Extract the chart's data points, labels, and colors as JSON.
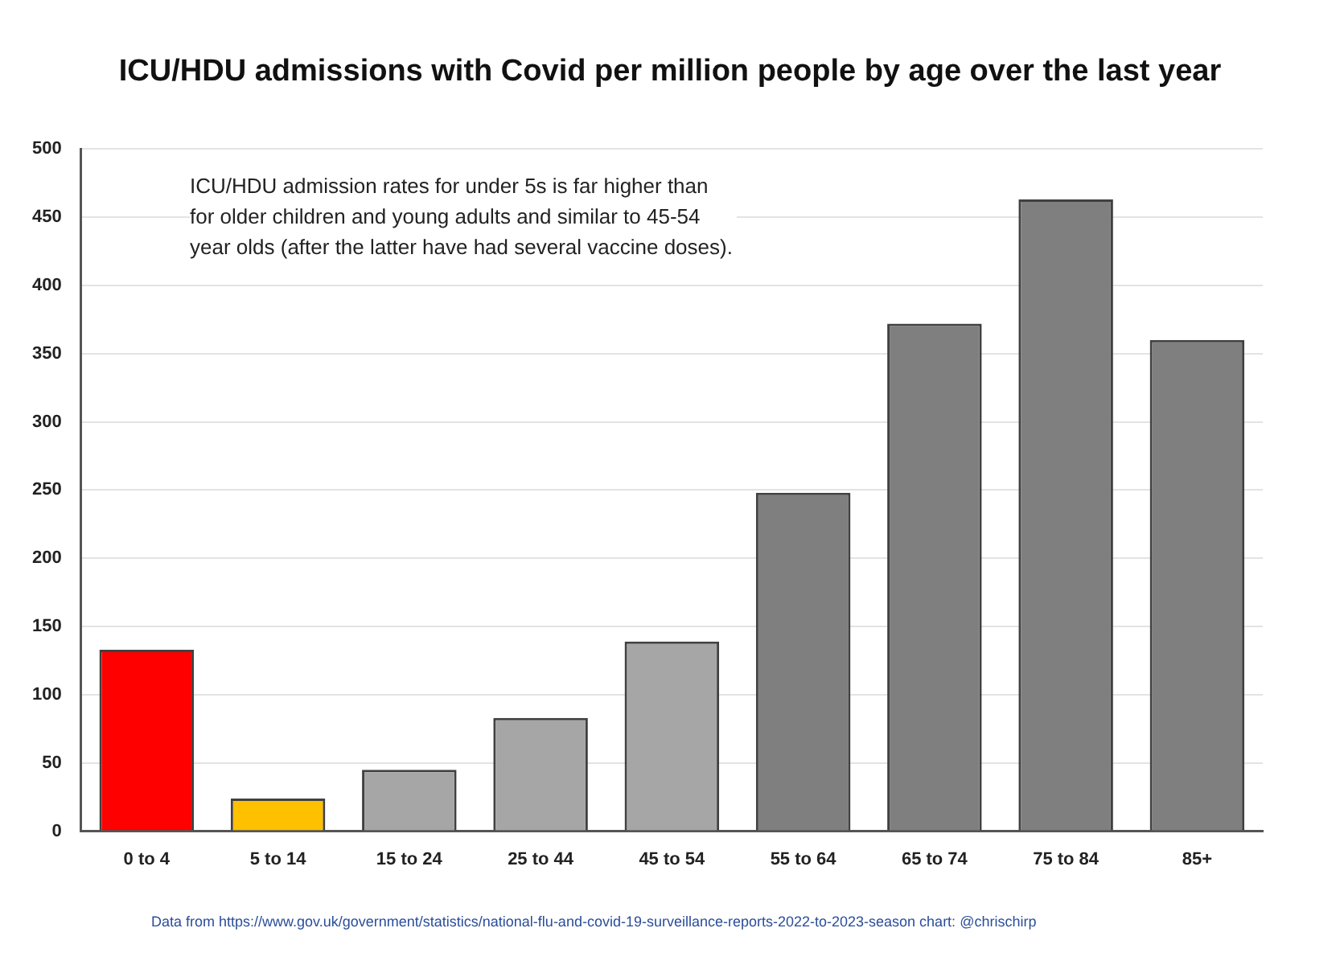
{
  "chart_data": {
    "type": "bar",
    "title": "ICU/HDU admissions with Covid per million people by age over the last year",
    "categories": [
      "0 to 4",
      "5 to 14",
      "15 to 24",
      "25 to 44",
      "45 to 54",
      "55 to 64",
      "65 to 74",
      "75 to 84",
      "85+"
    ],
    "values": [
      133,
      24,
      45,
      83,
      139,
      248,
      372,
      463,
      360
    ],
    "colors": [
      "#ff0000",
      "#ffc000",
      "#a6a6a6",
      "#a6a6a6",
      "#a6a6a6",
      "#7f7f7f",
      "#7f7f7f",
      "#7f7f7f",
      "#7f7f7f"
    ],
    "ylim": [
      0,
      500
    ],
    "yticks": [
      0,
      50,
      100,
      150,
      200,
      250,
      300,
      350,
      400,
      450,
      500
    ],
    "grid": "y",
    "legend": false,
    "annotations": [
      "ICU/HDU admission rates for under 5s is far higher than for older children and young adults and similar to 45-54 year olds (after the latter have had several vaccine doses).",
      "Data from https://www.gov.uk/government/statistics/national-flu-and-covid-19-surveillance-reports-2022-to-2023-season chart: @chrischirp"
    ]
  }
}
